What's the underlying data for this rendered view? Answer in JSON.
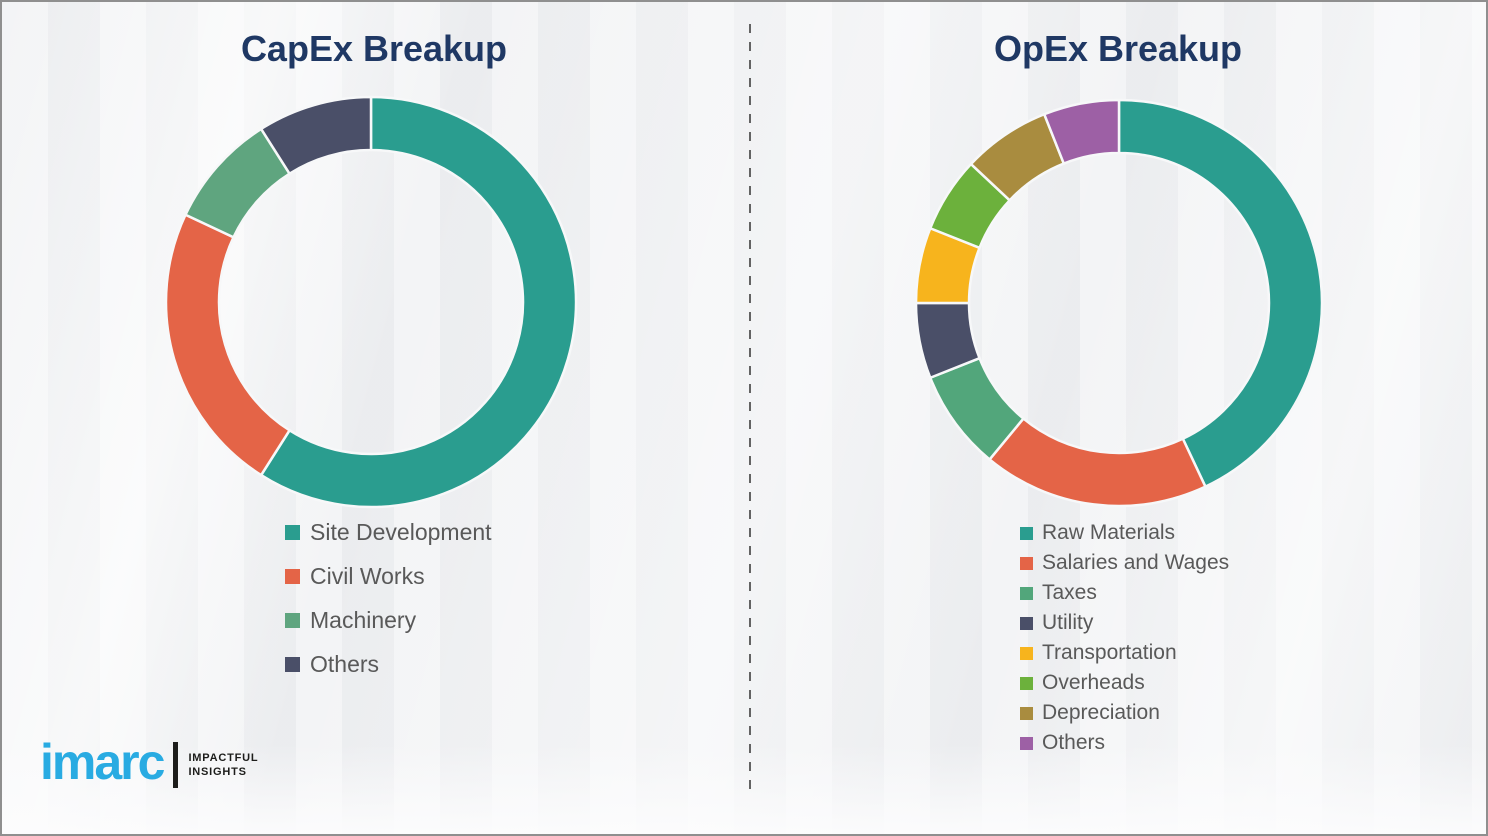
{
  "page": {
    "background_color": "#eff0f2",
    "divider": "vertical-dashed-line",
    "title_color": "#1f3864",
    "legend_text_color": "#595959"
  },
  "chart_data": [
    {
      "type": "pie",
      "donut": true,
      "title": "CapEx Breakup",
      "categories": [
        "Site Development",
        "Civil Works",
        "Machinery",
        "Others"
      ],
      "values": [
        59,
        23,
        9,
        9
      ],
      "value_format": "percent-estimated-from-arc-angles",
      "colors": [
        "#2a9d8f",
        "#e46447",
        "#5fa57f",
        "#4a4f68"
      ],
      "start_angle_deg": 0,
      "direction": "clockwise",
      "legend_position": "below-left"
    },
    {
      "type": "pie",
      "donut": true,
      "title": "OpEx Breakup",
      "categories": [
        "Raw Materials",
        "Salaries and Wages",
        "Taxes",
        "Utility",
        "Transportation",
        "Overheads",
        "Depreciation",
        "Others"
      ],
      "values": [
        43,
        18,
        8,
        6,
        6,
        6,
        7,
        6
      ],
      "value_format": "percent-estimated-from-arc-angles",
      "colors": [
        "#2a9d8f",
        "#e46447",
        "#52a67b",
        "#4a4f68",
        "#f7b41d",
        "#6cb13c",
        "#a98c3f",
        "#9d60a5"
      ],
      "start_angle_deg": 0,
      "direction": "clockwise",
      "legend_position": "below-left"
    }
  ],
  "logo": {
    "brand": "imarc",
    "brand_color": "#29abe2",
    "tagline_line1": "IMPACTFUL",
    "tagline_line2": "INSIGHTS"
  }
}
